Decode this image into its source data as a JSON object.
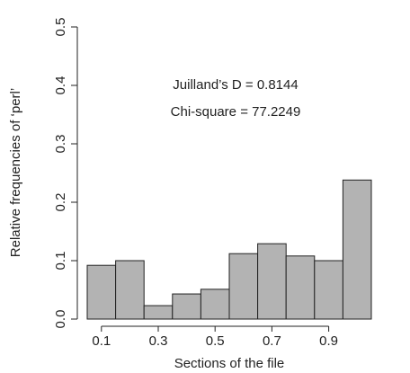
{
  "chart_data": {
    "type": "bar",
    "x_label": "Sections of the file",
    "y_label": "Relative frequencies of ‘perl’",
    "annotations": [
      "Juilland’s D = 0.8144",
      "Chi-square = 77.2249"
    ],
    "categories": [
      "0.1",
      null,
      "0.3",
      null,
      "0.5",
      null,
      "0.7",
      null,
      "0.9",
      null
    ],
    "values": [
      0.092,
      0.1,
      0.023,
      0.043,
      0.051,
      0.112,
      0.129,
      0.108,
      0.1,
      0.238
    ],
    "color": "#b3b3b3",
    "ylim": [
      0,
      0.5
    ],
    "yticks": [
      {
        "value": 0,
        "label": "0.0"
      },
      0.1,
      0.2,
      0.3,
      0.4,
      0.5
    ]
  }
}
